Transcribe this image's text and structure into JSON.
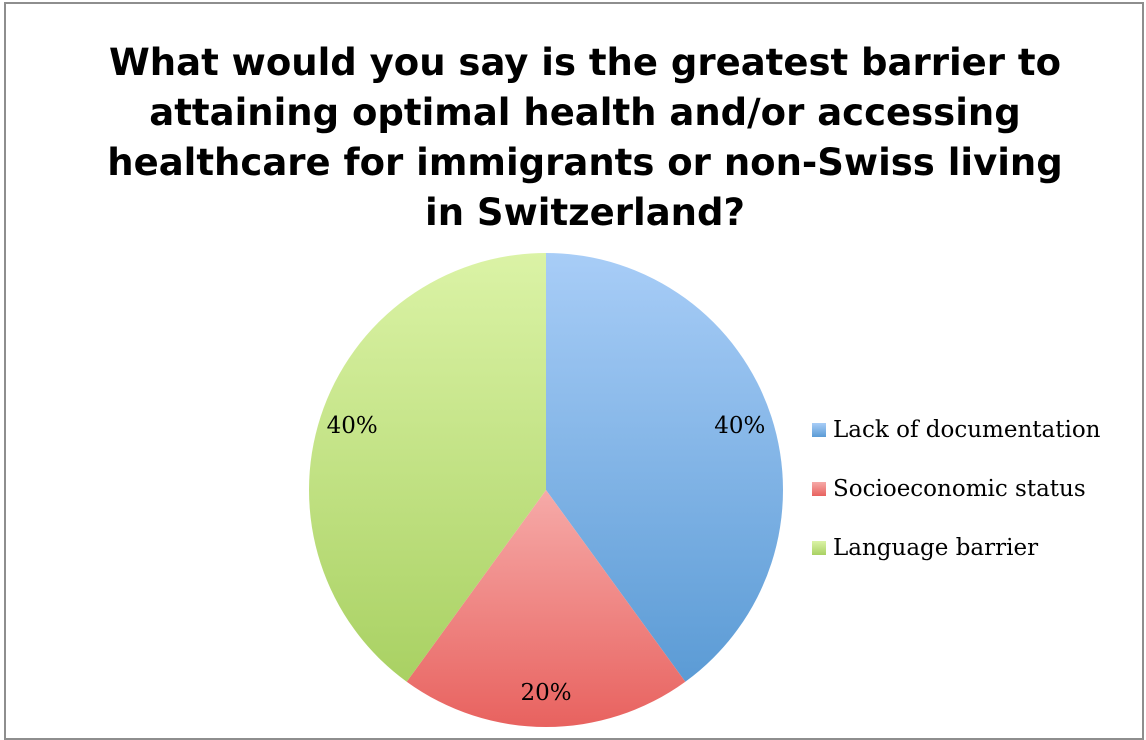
{
  "chart_data": {
    "type": "pie",
    "title": "What would you say is the greatest barrier to\nattaining optimal health and/or accessing\nhealthcare for immigrants or non-Swiss living\nin Switzerland?",
    "categories": [
      "Lack of documentation",
      "Socioeconomic status",
      "Language barrier"
    ],
    "values": [
      40,
      20,
      40
    ],
    "labels": [
      "40%",
      "20%",
      "40%"
    ],
    "colors": [
      "#5b9bd5",
      "#e8625f",
      "#a9d163"
    ],
    "colors_light": [
      "#a8cdf7",
      "#f6aaa8",
      "#dbf3a6"
    ],
    "legend_position": "right"
  }
}
